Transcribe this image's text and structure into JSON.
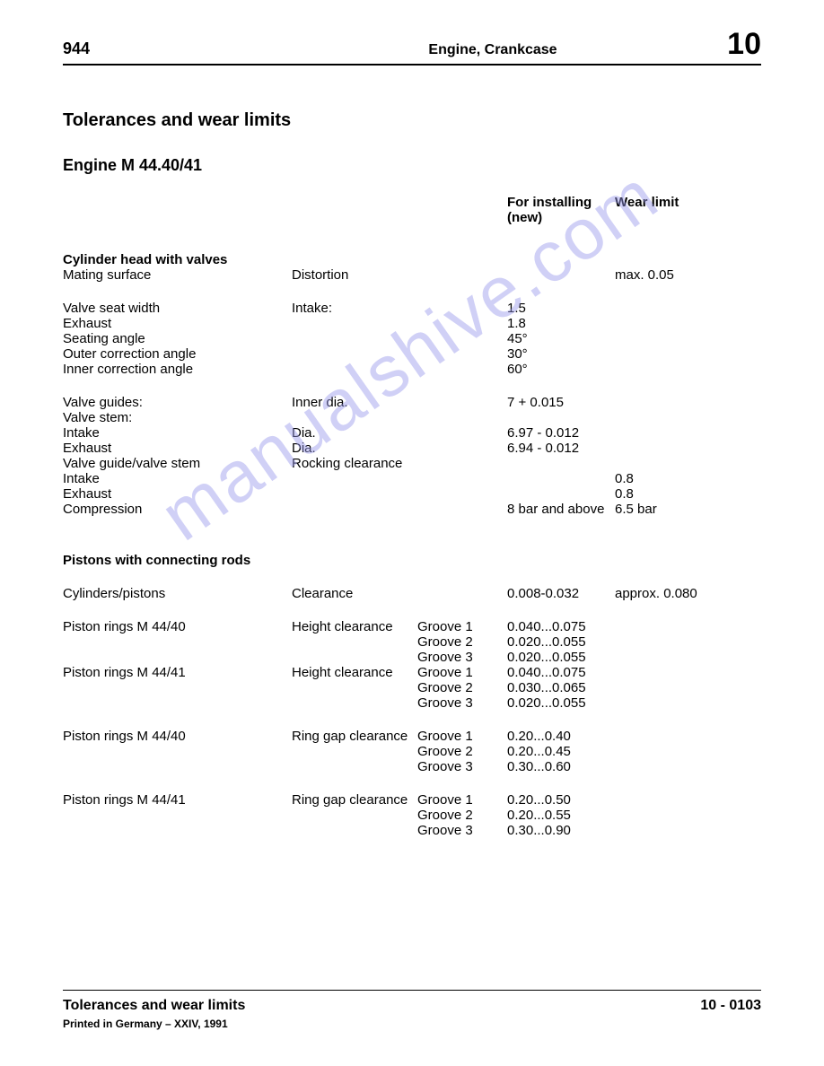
{
  "header": {
    "model": "944",
    "section": "Engine, Crankcase",
    "chapter": "10"
  },
  "titles": {
    "page_title": "Tolerances and wear limits",
    "engine": "Engine M 44.40/41",
    "col_new": "For installing (new)",
    "col_wear": "Wear limit"
  },
  "cylinder_head": {
    "heading": "Cylinder head with valves",
    "rows": [
      {
        "c1": "Mating surface",
        "c2": "Distortion",
        "c3": "",
        "c4": "",
        "c5": "max. 0.05"
      },
      {
        "spacer": true
      },
      {
        "c1": "Valve seat width",
        "c2": "Intake:",
        "c3": "",
        "c4": "1.5",
        "c5": ""
      },
      {
        "c1": "Exhaust",
        "c2": "",
        "c3": "",
        "c4": "1.8",
        "c5": ""
      },
      {
        "c1": "Seating angle",
        "c2": "",
        "c3": "",
        "c4": "45°",
        "c5": ""
      },
      {
        "c1": "Outer correction angle",
        "c2": "",
        "c3": "",
        "c4": "30°",
        "c5": ""
      },
      {
        "c1": "Inner correction angle",
        "c2": "",
        "c3": "",
        "c4": "60°",
        "c5": ""
      },
      {
        "spacer": true
      },
      {
        "c1": "Valve guides:",
        "c2": "Inner dia.",
        "c3": "",
        "c4": "7 + 0.015",
        "c5": ""
      },
      {
        "c1": "Valve stem:",
        "c2": "",
        "c3": "",
        "c4": "",
        "c5": ""
      },
      {
        "c1": "Intake",
        "c2": "Dia.",
        "c3": "",
        "c4": "6.97 - 0.012",
        "c5": ""
      },
      {
        "c1": "Exhaust",
        "c2": "Dia.",
        "c3": "",
        "c4": "6.94 - 0.012",
        "c5": ""
      },
      {
        "c1": "Valve guide/valve stem",
        "c2": "Rocking clearance",
        "c2span": true,
        "c4": "",
        "c5": ""
      },
      {
        "c1": "Intake",
        "c2": "",
        "c3": "",
        "c4": "",
        "c5": "0.8"
      },
      {
        "c1": "Exhaust",
        "c2": "",
        "c3": "",
        "c4": "",
        "c5": "0.8"
      },
      {
        "c1": "Compression",
        "c2": "",
        "c3": "",
        "c4": "8 bar and above",
        "c5": "6.5 bar"
      }
    ]
  },
  "pistons": {
    "heading": "Pistons with connecting rods",
    "rows": [
      {
        "spacer": true
      },
      {
        "c1": "Cylinders/pistons",
        "c2": "Clearance",
        "c3": "",
        "c4": "0.008-0.032",
        "c5": "approx. 0.080"
      },
      {
        "spacer": true
      },
      {
        "c1": "Piston rings M 44/40",
        "c2": "Height clearance",
        "c3": "Groove 1",
        "c4": "0.040...0.075",
        "c5": ""
      },
      {
        "c1": "",
        "c2": "",
        "c3": "Groove 2",
        "c4": "0.020...0.055",
        "c5": ""
      },
      {
        "c1": "",
        "c2": "",
        "c3": "Groove 3",
        "c4": "0.020...0.055",
        "c5": ""
      },
      {
        "c1": "Piston rings M 44/41",
        "c2": "Height clearance",
        "c3": "Groove 1",
        "c4": "0.040...0.075",
        "c5": ""
      },
      {
        "c1": "",
        "c2": "",
        "c3": "Groove 2",
        "c4": "0.030...0.065",
        "c5": ""
      },
      {
        "c1": "",
        "c2": "",
        "c3": "Groove 3",
        "c4": "0.020...0.055",
        "c5": ""
      },
      {
        "spacer": true
      },
      {
        "c1": "Piston rings M 44/40",
        "c2": "Ring gap clearance",
        "c3": "Groove 1",
        "c4": "0.20...0.40",
        "c5": ""
      },
      {
        "c1": "",
        "c2": "",
        "c3": "Groove 2",
        "c4": "0.20...0.45",
        "c5": ""
      },
      {
        "c1": "",
        "c2": "",
        "c3": "Groove 3",
        "c4": "0.30...0.60",
        "c5": ""
      },
      {
        "spacer": true
      },
      {
        "c1": "Piston rings M 44/41",
        "c2": "Ring gap clearance",
        "c3": "Groove 1",
        "c4": "0.20...0.50",
        "c5": ""
      },
      {
        "c1": "",
        "c2": "",
        "c3": "Groove 2",
        "c4": "0.20...0.55",
        "c5": ""
      },
      {
        "c1": "",
        "c2": "",
        "c3": "Groove 3",
        "c4": "0.30...0.90",
        "c5": ""
      }
    ]
  },
  "footer": {
    "title": "Tolerances and wear limits",
    "page": "10 - 0103",
    "print": "Printed in Germany – XXIV, 1991"
  },
  "watermark": "manualshive.com"
}
